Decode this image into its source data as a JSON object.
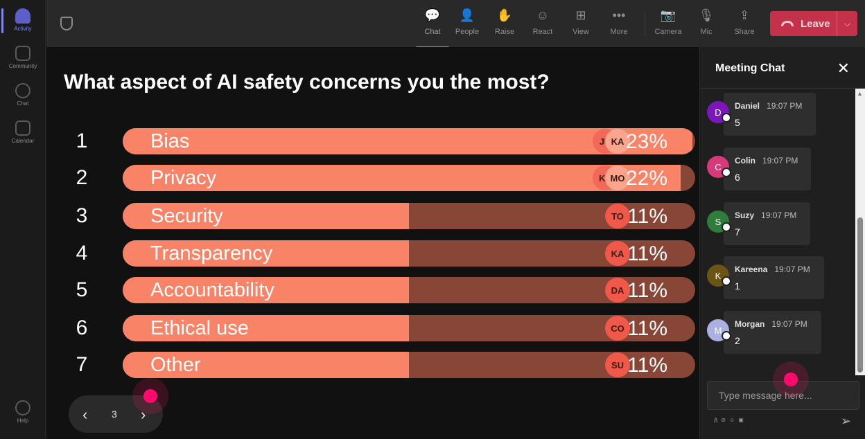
{
  "rail": {
    "items": [
      {
        "label": "Activity"
      },
      {
        "label": "Community"
      },
      {
        "label": "Chat"
      },
      {
        "label": "Calendar"
      },
      {
        "label": "Help"
      }
    ]
  },
  "toolbar": {
    "buttons": [
      {
        "label": "Chat",
        "glyph": "💬"
      },
      {
        "label": "People",
        "glyph": "👤"
      },
      {
        "label": "Raise",
        "glyph": "✋"
      },
      {
        "label": "React",
        "glyph": "☺"
      },
      {
        "label": "View",
        "glyph": "⊞"
      },
      {
        "label": "More",
        "glyph": "•••"
      },
      {
        "label": "Camera",
        "glyph": "📷"
      },
      {
        "label": "Mic",
        "glyph": "🎙"
      },
      {
        "label": "Share",
        "glyph": "⇪"
      }
    ],
    "leave_label": "Leave",
    "leave_caret": "⌵"
  },
  "poll": {
    "question": "What aspect of AI safety concerns you the most?",
    "options": [
      {
        "num": "1",
        "label": "Bias",
        "pct": "23%",
        "avatars": [
          "JU",
          "KA"
        ]
      },
      {
        "num": "2",
        "label": "Privacy",
        "pct": "22%",
        "avatars": [
          "KE",
          "MO"
        ]
      },
      {
        "num": "3",
        "label": "Security",
        "pct": "11%",
        "avatars": [
          "TO"
        ]
      },
      {
        "num": "4",
        "label": "Transparency",
        "pct": "11%",
        "avatars": [
          "KA"
        ]
      },
      {
        "num": "5",
        "label": "Accountability",
        "pct": "11%",
        "avatars": [
          "DA"
        ]
      },
      {
        "num": "6",
        "label": "Ethical use",
        "pct": "11%",
        "avatars": [
          "CO"
        ]
      },
      {
        "num": "7",
        "label": "Other",
        "pct": "11%",
        "avatars": [
          "SU"
        ]
      }
    ],
    "fill_fractions": [
      0.995,
      0.975,
      0.5,
      0.5,
      0.5,
      0.5,
      0.5
    ],
    "colors": {
      "fill": "#f98366",
      "track": "#874636"
    }
  },
  "pager": {
    "prev": "‹",
    "page": "3",
    "next": "›"
  },
  "chat": {
    "title": "Meeting Chat",
    "close": "✕",
    "messages": [
      {
        "initial": "D",
        "name": "Daniel",
        "time": "19:07 PM",
        "text": "5",
        "color": "#7b17b8"
      },
      {
        "initial": "C",
        "name": "Colin",
        "time": "19:07 PM",
        "text": "6",
        "color": "#d63a7a"
      },
      {
        "initial": "S",
        "name": "Suzy",
        "time": "19:07 PM",
        "text": "7",
        "color": "#2f7d3a"
      },
      {
        "initial": "K",
        "name": "Kareena",
        "time": "19:07 PM",
        "text": "1",
        "color": "#6b5516"
      },
      {
        "initial": "M",
        "name": "Morgan",
        "time": "19:07 PM",
        "text": "2",
        "color": "#aab0e0"
      }
    ],
    "compose_placeholder": "Type message here...",
    "send_glyph": "➢"
  }
}
